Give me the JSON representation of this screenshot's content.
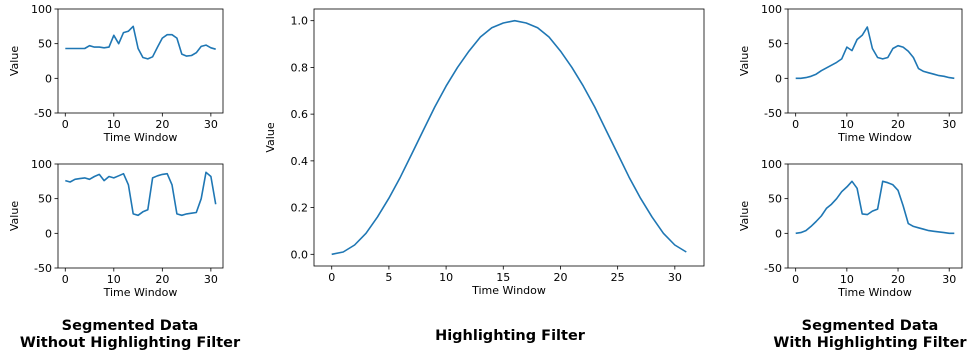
{
  "captions": {
    "left": {
      "line1": "Segmented Data",
      "line2": "Without Highlighting Filter"
    },
    "center": {
      "line1": "Highlighting Filter"
    },
    "right": {
      "line1": "Segmented Data",
      "line2": "With Highlighting Filter"
    }
  },
  "chart_data": [
    {
      "id": "left-top",
      "type": "line",
      "xlabel": "Time Window",
      "ylabel": "Value",
      "xlim": [
        -1.5,
        32.5
      ],
      "ylim": [
        -50,
        100
      ],
      "xticks": [
        0,
        10,
        20,
        30
      ],
      "yticks": [
        -50,
        0,
        50,
        100
      ],
      "series": [
        {
          "color": "#1f77b4",
          "x": [
            0,
            1,
            2,
            3,
            4,
            5,
            6,
            7,
            8,
            9,
            10,
            11,
            12,
            13,
            14,
            15,
            16,
            17,
            18,
            19,
            20,
            21,
            22,
            23,
            24,
            25,
            26,
            27,
            28,
            29,
            30,
            31
          ],
          "y": [
            43,
            43,
            43,
            43,
            43,
            47,
            45,
            45,
            44,
            45,
            62,
            50,
            66,
            68,
            75,
            43,
            30,
            28,
            31,
            45,
            58,
            63,
            63,
            58,
            35,
            32,
            33,
            37,
            46,
            48,
            44,
            42
          ]
        }
      ]
    },
    {
      "id": "left-bottom",
      "type": "line",
      "xlabel": "Time Window",
      "ylabel": "Value",
      "xlim": [
        -1.5,
        32.5
      ],
      "ylim": [
        -50,
        100
      ],
      "xticks": [
        0,
        10,
        20,
        30
      ],
      "yticks": [
        -50,
        0,
        50,
        100
      ],
      "series": [
        {
          "color": "#1f77b4",
          "x": [
            0,
            1,
            2,
            3,
            4,
            5,
            6,
            7,
            8,
            9,
            10,
            11,
            12,
            13,
            14,
            15,
            16,
            17,
            18,
            19,
            20,
            21,
            22,
            23,
            24,
            25,
            26,
            27,
            28,
            29,
            30,
            31
          ],
          "y": [
            76,
            74,
            78,
            79,
            80,
            78,
            82,
            85,
            76,
            82,
            80,
            83,
            86,
            70,
            28,
            26,
            31,
            34,
            80,
            83,
            85,
            86,
            70,
            28,
            26,
            28,
            29,
            30,
            50,
            88,
            82,
            42
          ]
        }
      ]
    },
    {
      "id": "center",
      "type": "line",
      "xlabel": "Time Window",
      "ylabel": "Value",
      "xlim": [
        -1.55,
        32.55
      ],
      "ylim": [
        -0.05,
        1.05
      ],
      "xticks": [
        0,
        5,
        10,
        15,
        20,
        25,
        30
      ],
      "yticks": [
        0.0,
        0.2,
        0.4,
        0.6,
        0.8,
        1.0
      ],
      "series": [
        {
          "color": "#1f77b4",
          "x": [
            0,
            1,
            2,
            3,
            4,
            5,
            6,
            7,
            8,
            9,
            10,
            11,
            12,
            13,
            14,
            15,
            16,
            17,
            18,
            19,
            20,
            21,
            22,
            23,
            24,
            25,
            26,
            27,
            28,
            29,
            30,
            31
          ],
          "y": [
            0.0,
            0.01,
            0.04,
            0.09,
            0.16,
            0.24,
            0.33,
            0.43,
            0.53,
            0.63,
            0.72,
            0.8,
            0.87,
            0.93,
            0.97,
            0.99,
            1.0,
            0.99,
            0.97,
            0.93,
            0.87,
            0.8,
            0.72,
            0.63,
            0.53,
            0.43,
            0.33,
            0.24,
            0.16,
            0.09,
            0.04,
            0.01
          ]
        }
      ]
    },
    {
      "id": "right-top",
      "type": "line",
      "xlabel": "Time Window",
      "ylabel": "Value",
      "xlim": [
        -1.5,
        32.5
      ],
      "ylim": [
        -50,
        100
      ],
      "xticks": [
        0,
        10,
        20,
        30
      ],
      "yticks": [
        -50,
        0,
        50,
        100
      ],
      "series": [
        {
          "color": "#1f77b4",
          "x": [
            0,
            1,
            2,
            3,
            4,
            5,
            6,
            7,
            8,
            9,
            10,
            11,
            12,
            13,
            14,
            15,
            16,
            17,
            18,
            19,
            20,
            21,
            22,
            23,
            24,
            25,
            26,
            27,
            28,
            29,
            30,
            31
          ],
          "y": [
            0,
            0,
            1,
            3,
            6,
            11,
            15,
            19,
            23,
            28,
            45,
            40,
            56,
            62,
            74,
            43,
            30,
            28,
            30,
            43,
            47,
            45,
            39,
            30,
            14,
            10,
            8,
            6,
            4,
            3,
            1,
            0
          ]
        }
      ]
    },
    {
      "id": "right-bottom",
      "type": "line",
      "xlabel": "Time Window",
      "ylabel": "Value",
      "xlim": [
        -1.5,
        32.5
      ],
      "ylim": [
        -50,
        100
      ],
      "xticks": [
        0,
        10,
        20,
        30
      ],
      "yticks": [
        -50,
        0,
        50,
        100
      ],
      "series": [
        {
          "color": "#1f77b4",
          "x": [
            0,
            1,
            2,
            3,
            4,
            5,
            6,
            7,
            8,
            9,
            10,
            11,
            12,
            13,
            14,
            15,
            16,
            17,
            18,
            19,
            20,
            21,
            22,
            23,
            24,
            25,
            26,
            27,
            28,
            29,
            30,
            31
          ],
          "y": [
            0,
            1,
            4,
            10,
            17,
            25,
            36,
            42,
            50,
            60,
            67,
            75,
            65,
            28,
            27,
            32,
            35,
            75,
            73,
            70,
            62,
            40,
            14,
            10,
            8,
            6,
            4,
            3,
            2,
            1,
            0,
            0
          ]
        }
      ]
    }
  ]
}
